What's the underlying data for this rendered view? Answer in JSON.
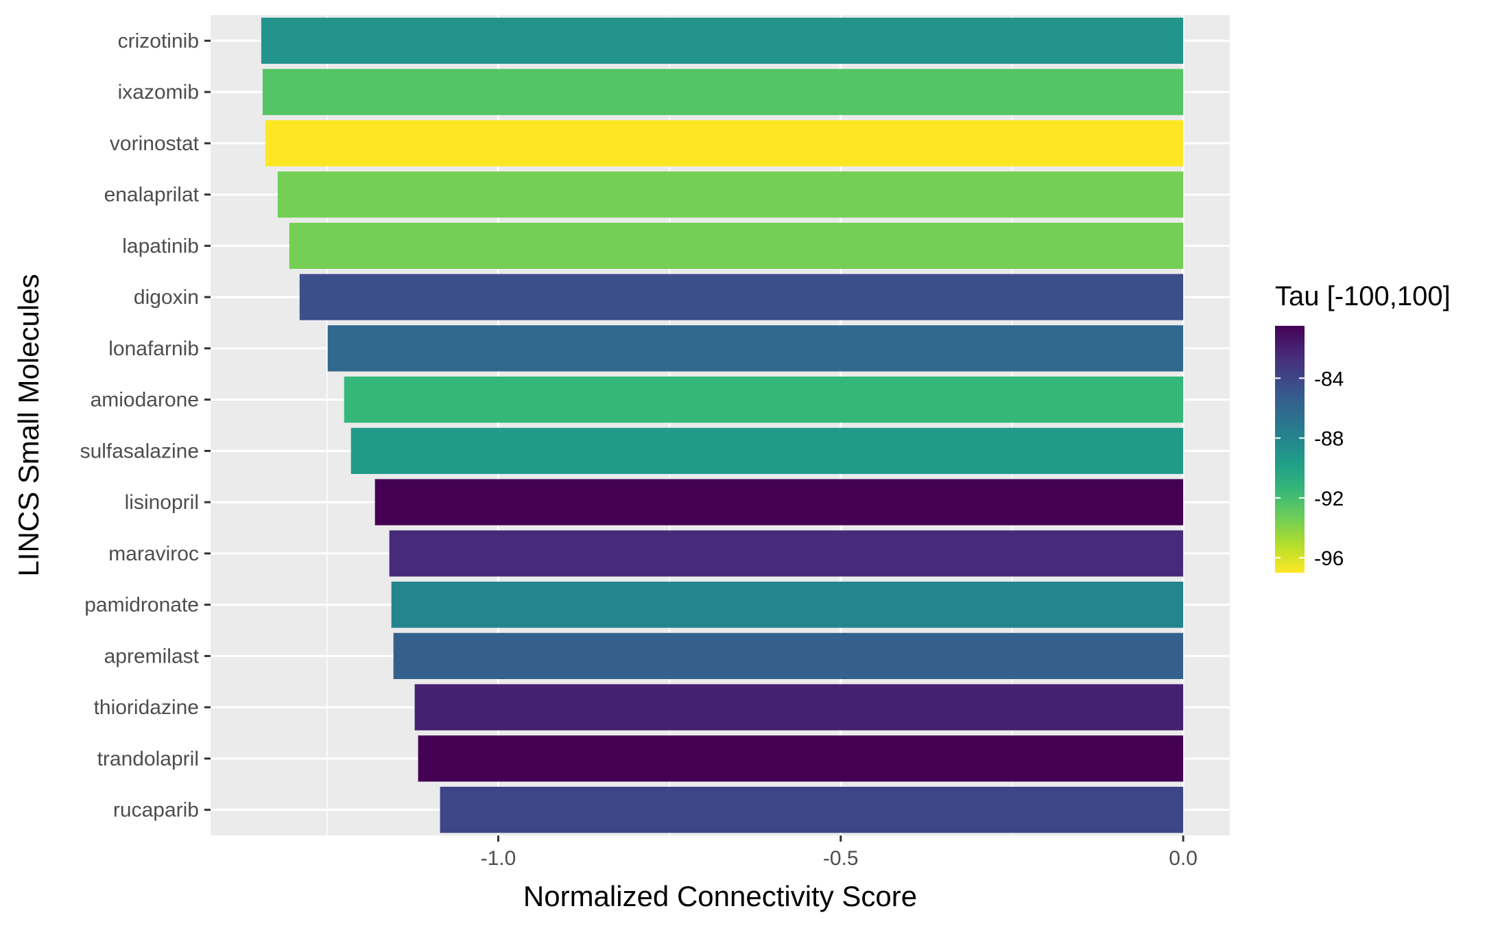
{
  "chart_data": {
    "type": "bar",
    "orientation": "horizontal",
    "xlabel": "Normalized Connectivity Score",
    "ylabel": "LINCS Small Molecules",
    "xlim": [
      -1.42,
      0.068
    ],
    "x_ticks": [
      -1.0,
      -0.5,
      0.0
    ],
    "x_tick_labels": [
      "-1.0",
      "-0.5",
      "0.0"
    ],
    "grid": true,
    "categories": [
      "crizotinib",
      "ixazomib",
      "vorinostat",
      "enalaprilat",
      "lapatinib",
      "digoxin",
      "lonafarnib",
      "amiodarone",
      "sulfasalazine",
      "lisinopril",
      "maraviroc",
      "pamidronate",
      "apremilast",
      "thioridazine",
      "trandolapril",
      "rucaparib"
    ],
    "values": [
      -1.346,
      -1.344,
      -1.34,
      -1.322,
      -1.305,
      -1.29,
      -1.249,
      -1.225,
      -1.215,
      -1.18,
      -1.159,
      -1.156,
      -1.153,
      -1.122,
      -1.117,
      -1.085
    ],
    "tau": [
      -89,
      -92.5,
      -97,
      -93.5,
      -93.5,
      -84.5,
      -86,
      -91.5,
      -89.5,
      -80.5,
      -82.5,
      -88,
      -85.5,
      -82,
      -80.5,
      -84
    ],
    "color_scale": {
      "title": "Tau [-100,100]",
      "palette": "viridis",
      "min": -97,
      "max": -80.5,
      "breaks": [
        -84,
        -88,
        -92,
        -96
      ],
      "break_labels": [
        "-84",
        "-88",
        "-92",
        "-96"
      ],
      "reverse": true
    }
  }
}
